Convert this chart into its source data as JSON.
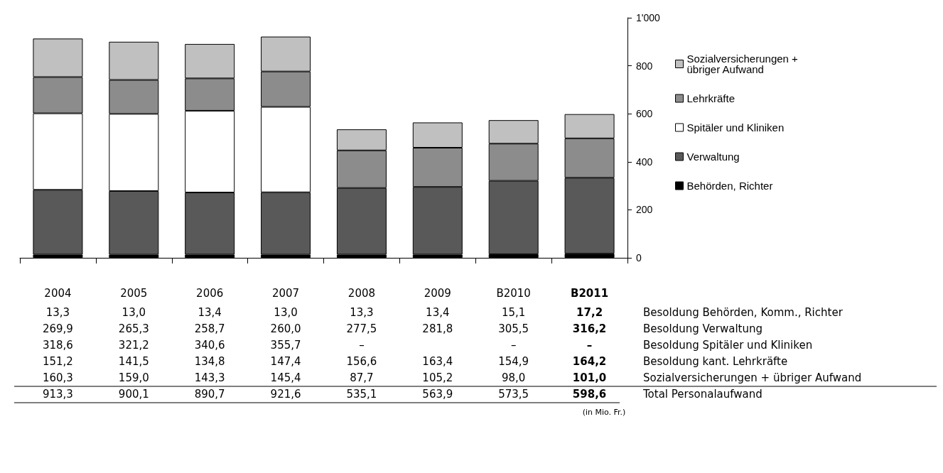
{
  "chart_data": {
    "type": "bar",
    "stacked": true,
    "categories": [
      "2004",
      "2005",
      "2006",
      "2007",
      "2008",
      "2009",
      "B2010",
      "B2011"
    ],
    "series": [
      {
        "name": "Behörden, Richter",
        "color": "#000000",
        "values": [
          13.3,
          13.0,
          13.4,
          13.0,
          13.3,
          13.4,
          15.1,
          17.2
        ],
        "value_labels": [
          "13,3",
          "13,0",
          "13,4",
          "13,0",
          "13,3",
          "13,4",
          "15,1",
          "17,2"
        ]
      },
      {
        "name": "Verwaltung",
        "color": "#595959",
        "values": [
          269.9,
          265.3,
          258.7,
          260.0,
          277.5,
          281.8,
          305.5,
          316.2
        ],
        "value_labels": [
          "269,9",
          "265,3",
          "258,7",
          "260,0",
          "277,5",
          "281,8",
          "305,5",
          "316,2"
        ]
      },
      {
        "name": "Spitäler und Kliniken",
        "color": "#ffffff",
        "values": [
          318.6,
          321.2,
          340.6,
          355.7,
          null,
          null,
          null,
          null
        ],
        "value_labels": [
          "318,6",
          "321,2",
          "340,6",
          "355,7",
          "–",
          null,
          "–",
          "–"
        ]
      },
      {
        "name": "Lehrkräfte",
        "color": "#8c8c8c",
        "values": [
          151.2,
          141.5,
          134.8,
          147.4,
          156.6,
          163.4,
          154.9,
          164.2
        ],
        "value_labels": [
          "151,2",
          "141,5",
          "134,8",
          "147,4",
          "156,6",
          "163,4",
          "154,9",
          "164,2"
        ]
      },
      {
        "name": "Sozialversicherungen + übriger Aufwand",
        "color": "#c0c0c0",
        "values": [
          160.3,
          159.0,
          143.3,
          145.4,
          87.7,
          105.2,
          98.0,
          101.0
        ],
        "value_labels": [
          "160,3",
          "159,0",
          "143,3",
          "145,4",
          "87,7",
          "105,2",
          "98,0",
          "101,0"
        ]
      }
    ],
    "ylim": [
      0,
      1000
    ],
    "yticks": [
      0,
      200,
      400,
      600,
      800,
      {
        "value": 1000,
        "label": "1'000"
      }
    ],
    "grid": false,
    "legend": "right",
    "annotations": [
      "Besoldung Behörden, Komm., Richter",
      "Besoldung Verwaltung",
      "Besoldung Spitäler und Kliniken",
      "Besoldung kant. Lehrkräfte",
      "Sozialversicherungen + übriger Aufwand",
      "Total Personalaufwand",
      "913,3",
      "900,1",
      "890,7",
      "921,6",
      "535,1",
      "563,9",
      "573,5",
      "598,6",
      "(in Mio. Fr.)"
    ]
  }
}
